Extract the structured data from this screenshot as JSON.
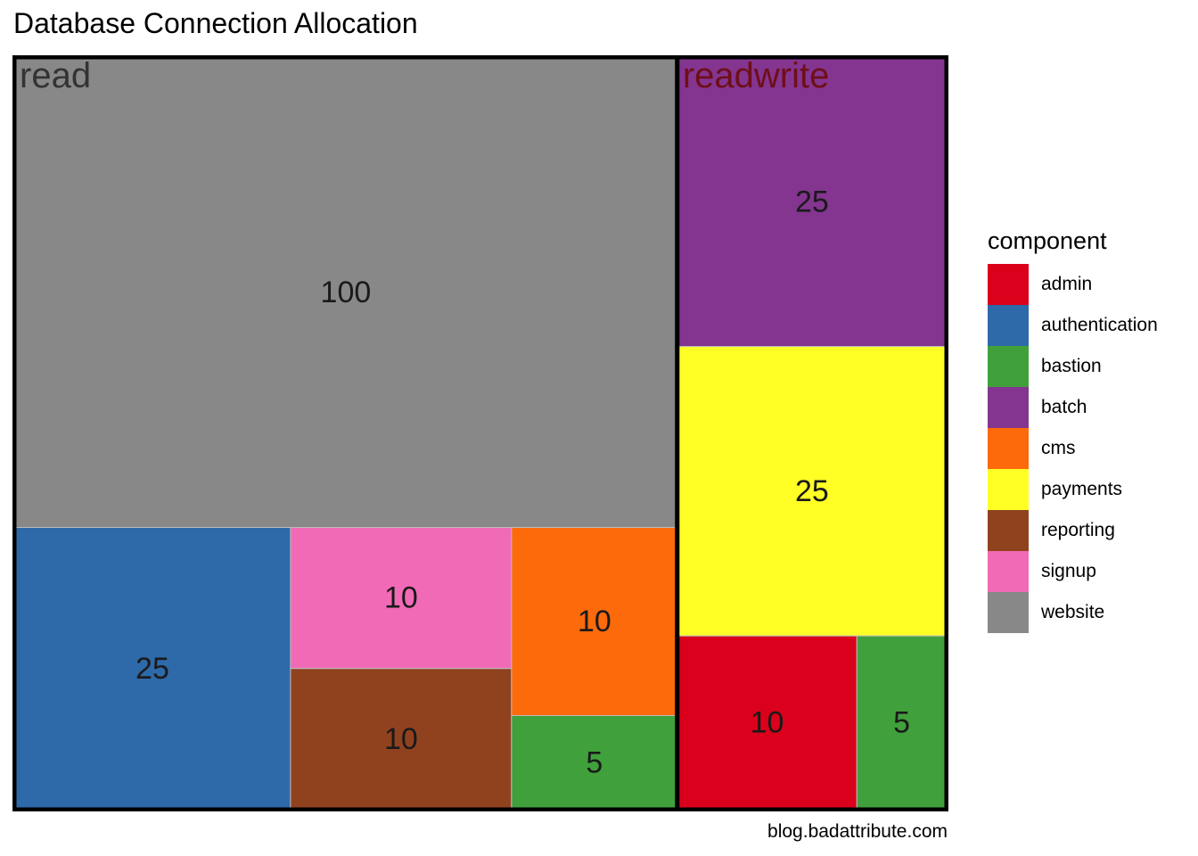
{
  "chart_data": {
    "type": "treemap",
    "title": "Database Connection Allocation",
    "legend": {
      "title": "component",
      "position": "right"
    },
    "caption": "blog.badattribute.com",
    "colors": {
      "admin": "#DB001B",
      "authentication": "#2E69A9",
      "bastion": "#40A03B",
      "batch": "#833590",
      "cms": "#FC6A0B",
      "payments": "#FFFF26",
      "reporting": "#90421F",
      "signup": "#F16AB5",
      "website": "#888888"
    },
    "legend_items": [
      "admin",
      "authentication",
      "bastion",
      "batch",
      "cms",
      "payments",
      "reporting",
      "signup",
      "website"
    ],
    "groups": [
      {
        "name": "read",
        "label_color": "#333333",
        "items": [
          {
            "component": "website",
            "value": 100,
            "label": "100"
          },
          {
            "component": "authentication",
            "value": 25,
            "label": "25"
          },
          {
            "component": "signup",
            "value": 10,
            "label": "10"
          },
          {
            "component": "reporting",
            "value": 10,
            "label": "10"
          },
          {
            "component": "cms",
            "value": 10,
            "label": "10"
          },
          {
            "component": "bastion",
            "value": 5,
            "label": "5"
          }
        ]
      },
      {
        "name": "readwrite",
        "label_color": "#6E0F18",
        "items": [
          {
            "component": "batch",
            "value": 25,
            "label": "25"
          },
          {
            "component": "payments",
            "value": 25,
            "label": "25"
          },
          {
            "component": "admin",
            "value": 10,
            "label": "10"
          },
          {
            "component": "bastion",
            "value": 5,
            "label": "5"
          }
        ]
      }
    ]
  }
}
